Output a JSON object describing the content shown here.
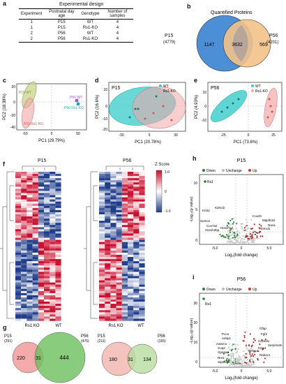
{
  "panels": {
    "a": "a",
    "b": "b",
    "c": "c",
    "d": "d",
    "e": "e",
    "f": "f",
    "g": "g",
    "h": "h",
    "i": "i"
  },
  "table": {
    "title": "Experimental design",
    "headers": [
      "Experiment",
      "Postnatal day age",
      "Genotype",
      "Number of samples"
    ],
    "rows": [
      [
        "1",
        "P15",
        "WT",
        "4"
      ],
      [
        "1",
        "P15",
        "Rs1-KO",
        "4"
      ],
      [
        "2",
        "P56",
        "WT",
        "4"
      ],
      [
        "2",
        "P56",
        "Rs1-KO",
        "4"
      ]
    ]
  },
  "venn_b": {
    "title": "Quantified Proteins",
    "left_label": "P15",
    "left_total": "(4779)",
    "right_label": "P56",
    "right_total": "(4201)",
    "left_only": "1147",
    "both": "3632",
    "right_only": "569"
  },
  "pca_c": {
    "xlabel": "PC1 (29.79%)",
    "ylabel": "PC2 (18.38%)",
    "labels": [
      "P15 WT",
      "P15 Rs1-KO",
      "P56 WT",
      "P56 Rs1-KO"
    ],
    "xticks": [
      "-50",
      "0",
      "50"
    ],
    "yticks": [
      "20",
      "0",
      "-20",
      "-40"
    ]
  },
  "pca_d": {
    "title": "P15",
    "xlabel": "PC1 (20.78%)",
    "ylabel": "PC2 (16.6%)",
    "legend": [
      "WT",
      "Rs1-KO"
    ],
    "xticks": [
      "-30",
      "0",
      "30"
    ],
    "yticks": [
      "10",
      "0",
      "-10",
      "-20"
    ]
  },
  "pca_e": {
    "title": "P56",
    "xlabel": "PC1 (73.6%)",
    "ylabel": "PC2 (4.93%)",
    "legend": [
      "WT",
      "Rs1-KO"
    ],
    "xticks": [
      "-25",
      "0",
      "25"
    ],
    "yticks": [
      "10",
      "0",
      "-10"
    ]
  },
  "heatmap": {
    "left_title": "P15",
    "right_title": "P56",
    "zlabel": "Z Score",
    "zticks": [
      "1.0",
      "0",
      "-1.0"
    ],
    "left_groups": [
      "Rs1 KO",
      "WT"
    ],
    "right_groups": [
      "Rs1 KO",
      "WT"
    ]
  },
  "venn_g1": {
    "left_label": "P15",
    "left_total": "(251)",
    "right_label": "P56",
    "right_total": "(475)",
    "left_only": "220",
    "both": "31",
    "right_only": "444"
  },
  "venn_g2": {
    "left_label": "P15",
    "left_total": "(211)",
    "right_label": "P56",
    "right_total": "(165)",
    "left_only": "180",
    "both": "31",
    "right_only": "134"
  },
  "volcano_h": {
    "title": "P15",
    "legend": [
      "Down",
      "Unchange",
      "Up"
    ],
    "xlabel": "Log₂(fold change)",
    "ylabel": "-Log₁₀(p value)",
    "xticks": [
      "-5.0",
      "0",
      "5.0"
    ],
    "yticks": [
      "10",
      "5",
      "0"
    ],
    "genes": [
      "Rs1",
      "Krt42",
      "Kdm1b",
      "Sumo1",
      "Cox7a2",
      "Hist1h2bp",
      "Hist1h1d",
      "Cox20",
      "Mapllc3a",
      "Naca",
      "Rbmxl1",
      "Elavl4",
      "Ddx3x",
      "Rab3b",
      "Ttc1",
      "Ctnbl1",
      "Rbmx",
      "Smarcd1",
      "Ablim2",
      "Gdnd1",
      "Ttr",
      "Ybx1",
      "PPal",
      "Lamp1",
      "Gm43",
      "Elavl3",
      "Mtmr3",
      "Ctp",
      "Tbcd",
      "Acap2",
      "Paip1",
      "EMemh1",
      "Ddx17",
      "Rbms1",
      "Rcal1",
      "Wwp1",
      "Rbmxl1"
    ]
  },
  "volcano_i": {
    "title": "P56",
    "legend": [
      "Down",
      "Unchange",
      "Up"
    ],
    "xlabel": "Log₂(fold change)",
    "ylabel": "-Log₁₀(p value)",
    "xticks": [
      "-5.0",
      "0",
      "5.0"
    ],
    "yticks": [
      "30",
      "20",
      "10",
      "0"
    ],
    "genes": [
      "Rs1",
      "Gfap",
      "Fgf2",
      "Cdckal1",
      "Serpina3n",
      "Emc4",
      "Smoc2",
      "Rabac1",
      "Aebp1",
      "Aatsm1",
      "Coq3",
      "Gpaaaa",
      "Pcca",
      "Rrn1",
      "Sipa1l2",
      "Gmas"
    ]
  }
}
